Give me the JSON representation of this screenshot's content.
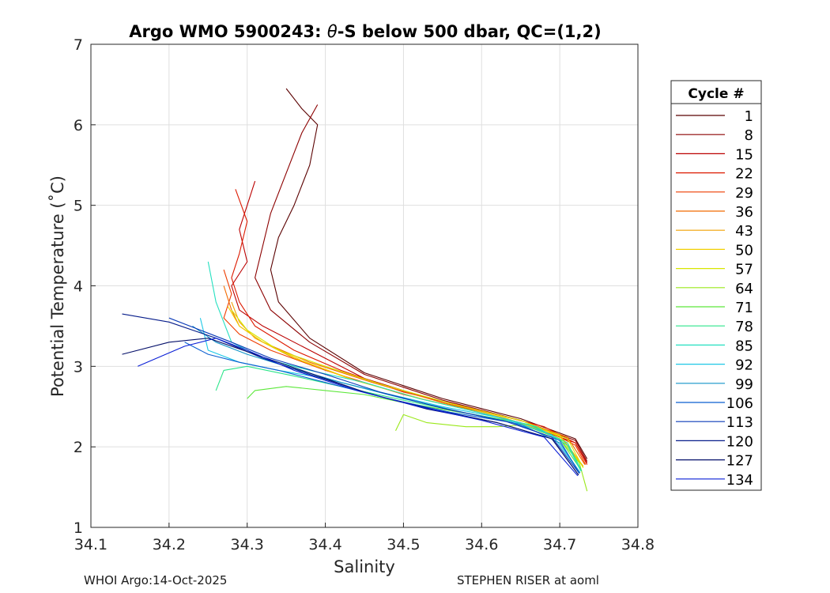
{
  "chart_data": {
    "type": "line",
    "title_prefix": "Argo WMO 5900243: ",
    "title_theta": "θ",
    "title_suffix": "-S below 500 dbar,  QC=(1,2)",
    "xlabel": "Salinity",
    "ylabel": "Potential Temperature (˚C)",
    "xlim": [
      34.1,
      34.8
    ],
    "ylim": [
      1,
      7
    ],
    "xticks": [
      "34.1",
      "34.2",
      "34.3",
      "34.4",
      "34.5",
      "34.6",
      "34.7",
      "34.8"
    ],
    "yticks": [
      "1",
      "2",
      "3",
      "4",
      "5",
      "6",
      "7"
    ],
    "grid": true,
    "legend": {
      "title": "Cycle #",
      "position": "outside-right",
      "entries": [
        {
          "label": "1",
          "color": "#5a0000"
        },
        {
          "label": "8",
          "color": "#8c0000"
        },
        {
          "label": "15",
          "color": "#bb0000"
        },
        {
          "label": "22",
          "color": "#dd1a00"
        },
        {
          "label": "29",
          "color": "#ee3d00"
        },
        {
          "label": "36",
          "color": "#f26a00"
        },
        {
          "label": "43",
          "color": "#f0a000"
        },
        {
          "label": "50",
          "color": "#f2d000"
        },
        {
          "label": "57",
          "color": "#d8e600"
        },
        {
          "label": "64",
          "color": "#9ae81a"
        },
        {
          "label": "71",
          "color": "#5ce83a"
        },
        {
          "label": "78",
          "color": "#2ce58a"
        },
        {
          "label": "85",
          "color": "#25e0c0"
        },
        {
          "label": "92",
          "color": "#1ec8e6"
        },
        {
          "label": "99",
          "color": "#1294c8"
        },
        {
          "label": "106",
          "color": "#0b5fd0"
        },
        {
          "label": "113",
          "color": "#0a3ab8"
        },
        {
          "label": "120",
          "color": "#061c8a"
        },
        {
          "label": "127",
          "color": "#05106a"
        },
        {
          "label": "134",
          "color": "#0a1fd6"
        }
      ]
    },
    "series": [
      {
        "name": "1",
        "x": [
          34.35,
          34.37,
          34.39,
          34.38,
          34.36,
          34.34,
          34.33,
          34.34,
          34.38,
          34.45,
          34.55,
          34.65,
          34.72,
          34.735
        ],
        "y": [
          6.45,
          6.2,
          6.0,
          5.5,
          5.0,
          4.6,
          4.2,
          3.8,
          3.35,
          2.92,
          2.6,
          2.35,
          2.1,
          1.85
        ]
      },
      {
        "name": "8",
        "x": [
          34.39,
          34.37,
          34.35,
          34.33,
          34.32,
          34.31,
          34.33,
          34.38,
          34.45,
          34.55,
          34.65,
          34.72,
          34.735
        ],
        "y": [
          6.25,
          5.9,
          5.4,
          4.9,
          4.5,
          4.1,
          3.7,
          3.3,
          2.9,
          2.58,
          2.33,
          2.08,
          1.82
        ]
      },
      {
        "name": "15",
        "x": [
          34.31,
          34.3,
          34.29,
          34.3,
          34.28,
          34.29,
          34.32,
          34.38,
          34.45,
          34.55,
          34.65,
          34.72,
          34.735
        ],
        "y": [
          5.3,
          5.0,
          4.7,
          4.3,
          4.0,
          3.7,
          3.5,
          3.2,
          2.85,
          2.55,
          2.3,
          2.05,
          1.8
        ]
      },
      {
        "name": "22",
        "x": [
          34.285,
          34.3,
          34.29,
          34.28,
          34.29,
          34.31,
          34.36,
          34.42,
          34.5,
          34.6,
          34.68,
          34.72,
          34.735
        ],
        "y": [
          5.2,
          4.8,
          4.4,
          4.1,
          3.8,
          3.5,
          3.2,
          2.95,
          2.68,
          2.45,
          2.25,
          2.05,
          1.78
        ]
      },
      {
        "name": "29",
        "x": [
          34.27,
          34.28,
          34.27,
          34.29,
          34.33,
          34.4,
          34.5,
          34.6,
          34.68,
          34.72,
          34.733
        ],
        "y": [
          4.2,
          3.9,
          3.6,
          3.4,
          3.2,
          2.95,
          2.65,
          2.42,
          2.22,
          2.02,
          1.78
        ]
      },
      {
        "name": "36",
        "x": [
          34.27,
          34.28,
          34.29,
          34.32,
          34.38,
          34.46,
          34.55,
          34.65,
          34.71,
          34.732
        ],
        "y": [
          4.0,
          3.7,
          3.5,
          3.3,
          3.05,
          2.8,
          2.55,
          2.33,
          2.12,
          1.78
        ]
      },
      {
        "name": "43",
        "x": [
          34.28,
          34.29,
          34.31,
          34.36,
          34.43,
          34.52,
          34.62,
          34.7,
          34.73
        ],
        "y": [
          3.8,
          3.55,
          3.35,
          3.1,
          2.85,
          2.6,
          2.38,
          2.15,
          1.76
        ]
      },
      {
        "name": "50",
        "x": [
          34.275,
          34.29,
          34.32,
          34.37,
          34.44,
          34.53,
          34.63,
          34.7,
          34.73
        ],
        "y": [
          3.75,
          3.5,
          3.3,
          3.07,
          2.82,
          2.58,
          2.36,
          2.13,
          1.75
        ]
      },
      {
        "name": "57",
        "x": [
          34.28,
          34.3,
          34.34,
          34.4,
          34.47,
          34.56,
          34.65,
          34.71,
          34.73
        ],
        "y": [
          3.7,
          3.45,
          3.2,
          3.0,
          2.78,
          2.54,
          2.33,
          2.1,
          1.74
        ]
      },
      {
        "name": "64",
        "x": [
          34.49,
          34.5,
          34.53,
          34.58,
          34.62,
          34.66,
          34.7,
          34.725,
          34.735
        ],
        "y": [
          2.2,
          2.4,
          2.3,
          2.25,
          2.25,
          2.28,
          2.1,
          1.8,
          1.45
        ]
      },
      {
        "name": "71",
        "x": [
          34.3,
          34.31,
          34.35,
          34.4,
          34.45,
          34.5,
          34.56,
          34.64,
          34.7,
          34.728
        ],
        "y": [
          2.6,
          2.7,
          2.75,
          2.7,
          2.65,
          2.55,
          2.45,
          2.32,
          2.1,
          1.7
        ]
      },
      {
        "name": "78",
        "x": [
          34.26,
          34.27,
          34.3,
          34.36,
          34.42,
          34.5,
          34.58,
          34.66,
          34.71,
          34.728
        ],
        "y": [
          2.7,
          2.95,
          3.0,
          2.88,
          2.75,
          2.58,
          2.42,
          2.28,
          2.05,
          1.7
        ]
      },
      {
        "name": "85",
        "x": [
          34.25,
          34.26,
          34.28,
          34.32,
          34.38,
          34.45,
          34.52,
          34.6,
          34.67,
          34.71,
          34.727
        ],
        "y": [
          4.3,
          3.8,
          3.3,
          3.1,
          2.95,
          2.8,
          2.6,
          2.42,
          2.25,
          2.02,
          1.7
        ]
      },
      {
        "name": "92",
        "x": [
          34.24,
          34.25,
          34.29,
          34.34,
          34.4,
          34.47,
          34.55,
          34.63,
          34.69,
          34.726
        ],
        "y": [
          3.6,
          3.2,
          3.05,
          2.95,
          2.85,
          2.68,
          2.5,
          2.35,
          2.15,
          1.68
        ]
      },
      {
        "name": "99",
        "x": [
          34.23,
          34.26,
          34.3,
          34.35,
          34.42,
          34.5,
          34.58,
          34.65,
          34.7,
          34.726
        ],
        "y": [
          3.5,
          3.3,
          3.15,
          3.0,
          2.8,
          2.6,
          2.42,
          2.28,
          2.05,
          1.68
        ]
      },
      {
        "name": "106",
        "x": [
          34.22,
          34.25,
          34.29,
          34.34,
          34.4,
          34.48,
          34.56,
          34.64,
          34.7,
          34.725
        ],
        "y": [
          3.3,
          3.15,
          3.05,
          2.95,
          2.8,
          2.6,
          2.43,
          2.3,
          2.08,
          1.67
        ]
      },
      {
        "name": "113",
        "x": [
          34.2,
          34.24,
          34.28,
          34.33,
          34.4,
          34.47,
          34.55,
          34.63,
          34.69,
          34.725
        ],
        "y": [
          3.6,
          3.45,
          3.3,
          3.1,
          2.9,
          2.68,
          2.48,
          2.32,
          2.12,
          1.67
        ]
      },
      {
        "name": "120",
        "x": [
          34.14,
          34.2,
          34.26,
          34.32,
          34.38,
          34.46,
          34.54,
          34.62,
          34.69,
          34.724
        ],
        "y": [
          3.65,
          3.55,
          3.35,
          3.1,
          2.9,
          2.65,
          2.46,
          2.3,
          2.1,
          1.65
        ]
      },
      {
        "name": "127",
        "x": [
          34.14,
          34.2,
          34.25,
          34.31,
          34.37,
          34.45,
          34.53,
          34.62,
          34.69,
          34.724
        ],
        "y": [
          3.15,
          3.3,
          3.35,
          3.15,
          2.95,
          2.68,
          2.47,
          2.3,
          2.1,
          1.65
        ]
      },
      {
        "name": "134",
        "x": [
          34.16,
          34.22,
          34.26,
          34.3,
          34.36,
          34.44,
          34.52,
          34.6,
          34.68,
          34.723
        ],
        "y": [
          3.0,
          3.25,
          3.35,
          3.2,
          2.95,
          2.7,
          2.5,
          2.33,
          2.12,
          1.64
        ]
      }
    ]
  },
  "footer": {
    "left": "WHOI Argo:14-Oct-2025",
    "right": "STEPHEN RISER at aoml"
  }
}
